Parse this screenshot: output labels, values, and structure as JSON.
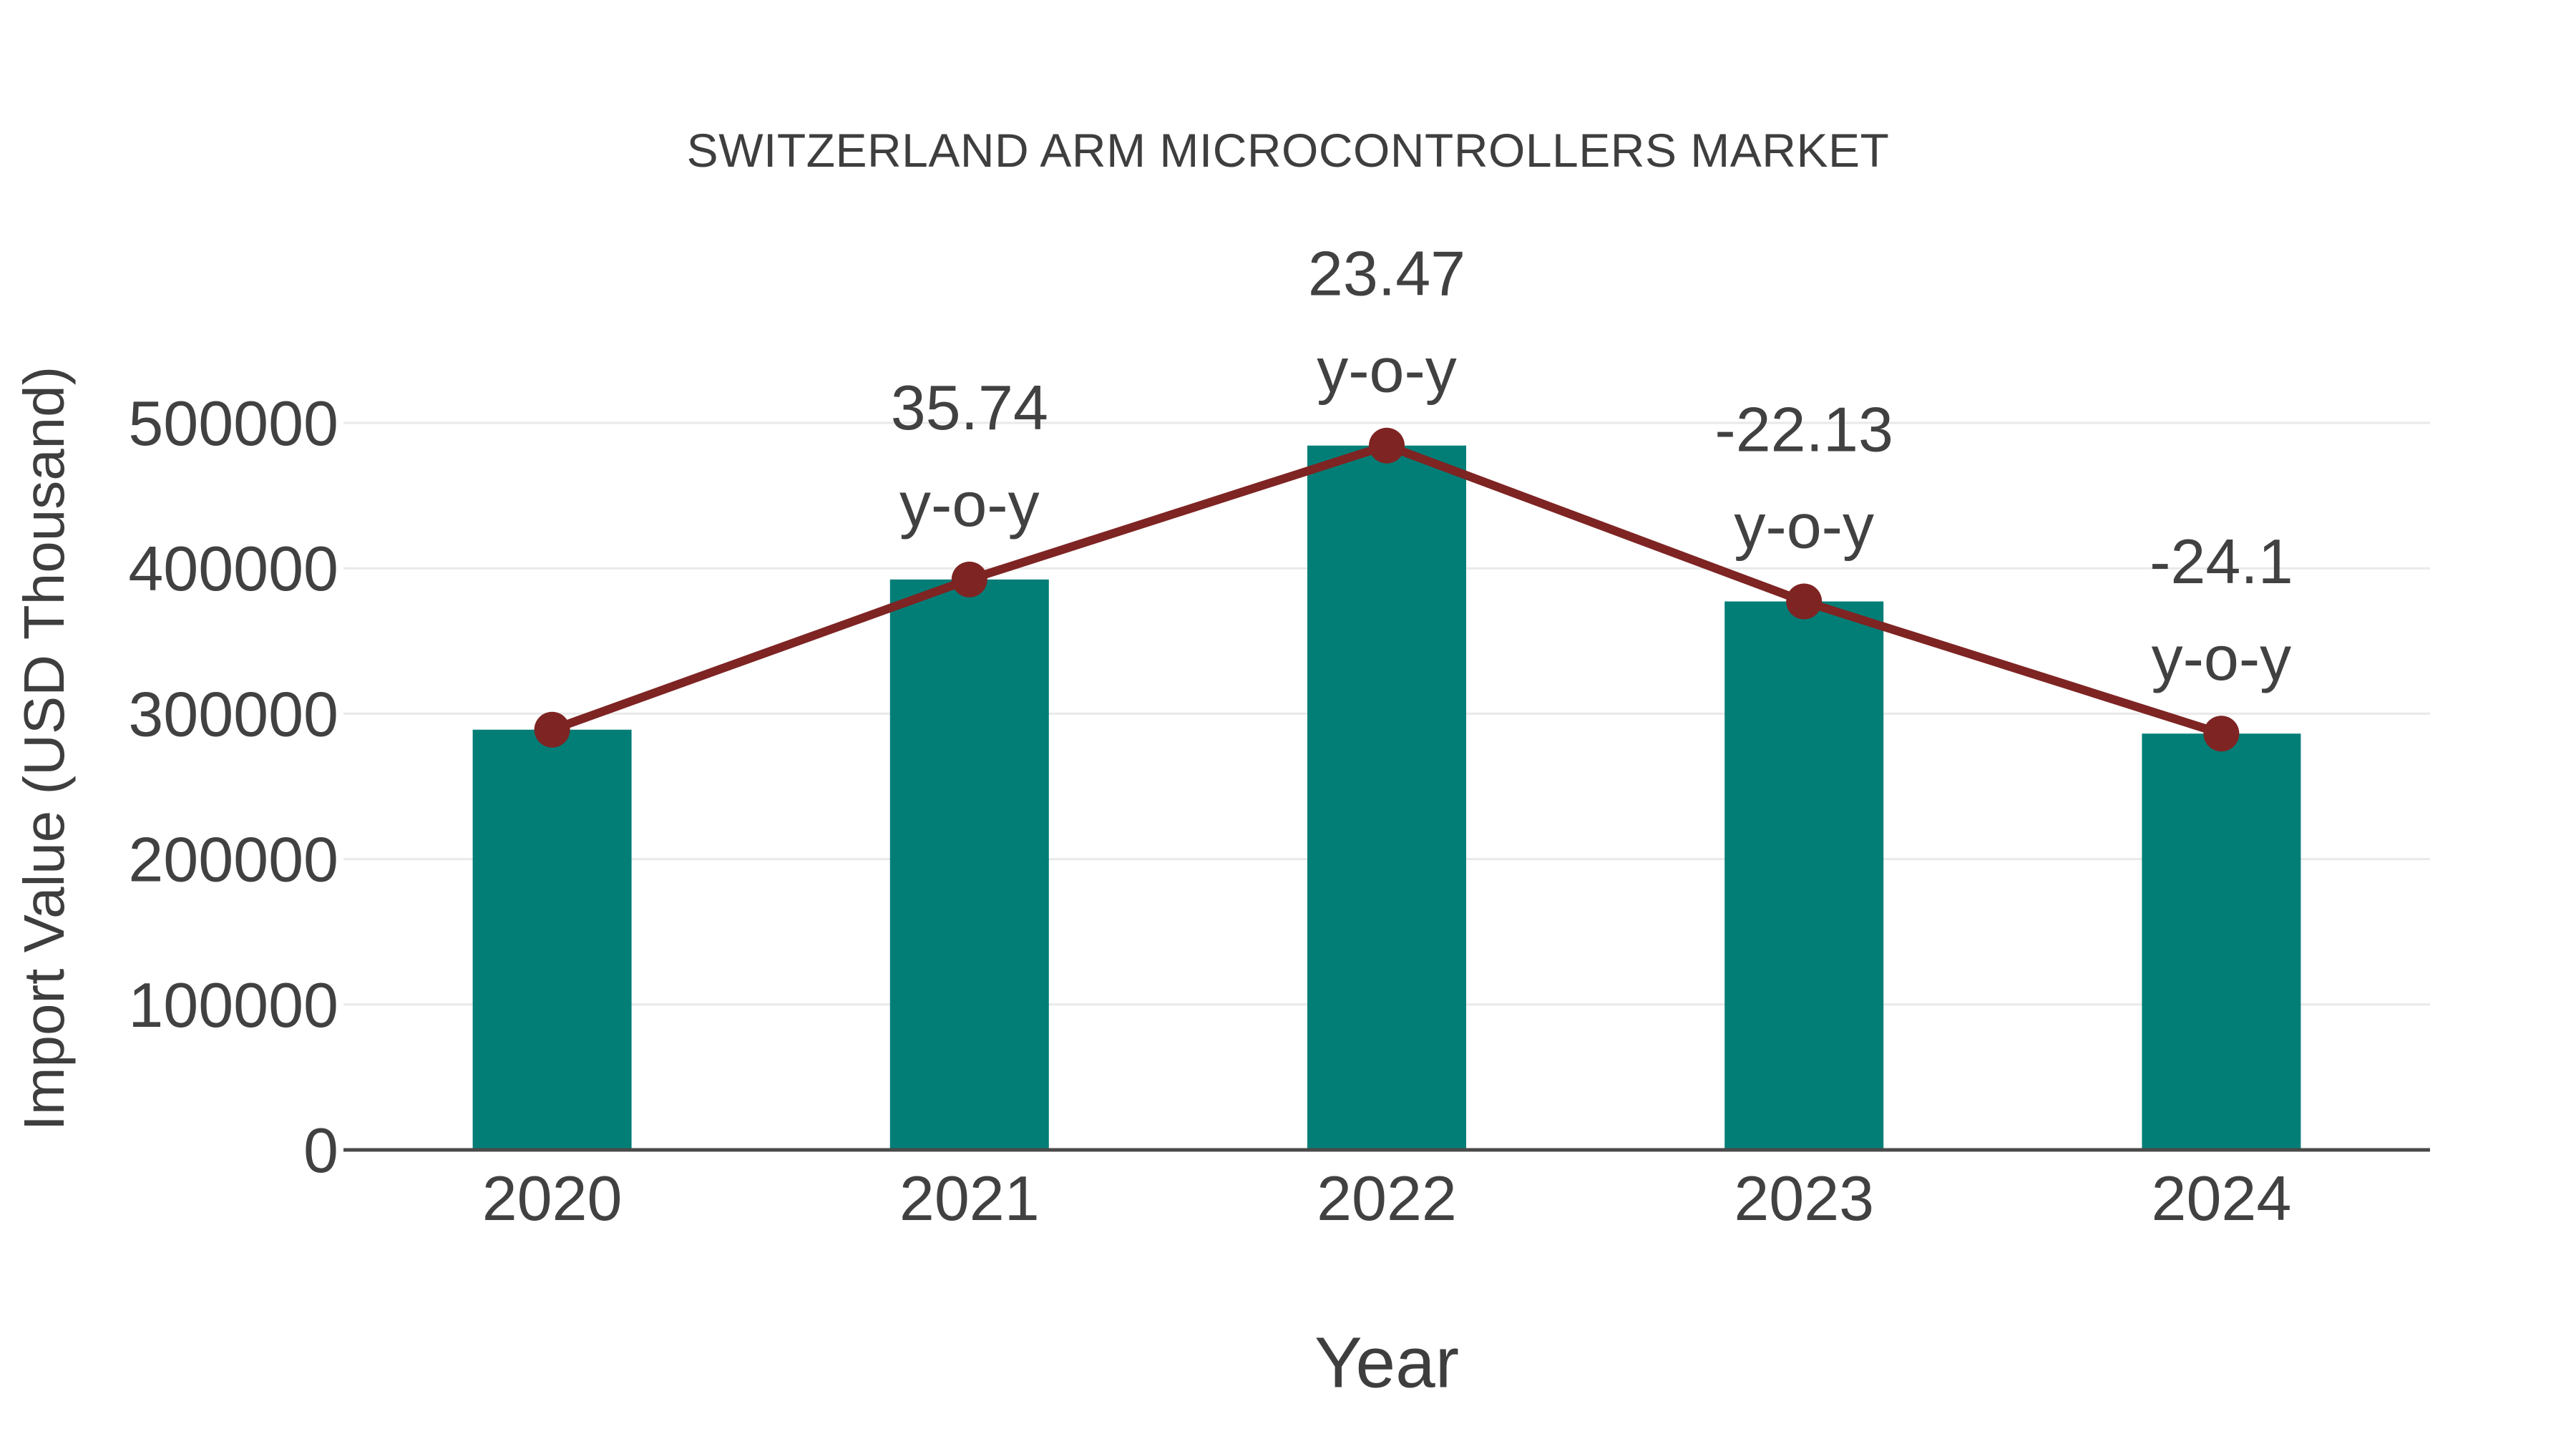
{
  "chart_data": {
    "type": "bar",
    "title": "SWITZERLAND ARM MICROCONTROLLERS MARKET",
    "xlabel": "Year",
    "ylabel": "Import Value (USD Thousand)",
    "categories": [
      "2020",
      "2021",
      "2022",
      "2023",
      "2024"
    ],
    "series": [
      {
        "name": "Import Value bars",
        "type": "bar",
        "color": "#027E77",
        "values": [
          289000,
          392300,
          484400,
          377200,
          286300
        ]
      },
      {
        "name": "y-o-y trend line",
        "type": "line",
        "color": "#7E2423",
        "values": [
          289000,
          392300,
          484400,
          377200,
          286300
        ],
        "point_labels": [
          null,
          "35.74",
          "23.47",
          "-22.13",
          "-24.1"
        ],
        "point_label_suffix": "y-o-y"
      }
    ],
    "ylim": [
      0,
      530000
    ],
    "ytick_values": [
      0,
      100000,
      200000,
      300000,
      400000,
      500000
    ],
    "ytick_labels": [
      "0",
      "100000",
      "200000",
      "300000",
      "400000",
      "500000"
    ],
    "grid": "horizontal",
    "legend": "none",
    "colors": {
      "bar": "#027E77",
      "line": "#7E2423",
      "marker": "#7E2423",
      "text": "#414141",
      "grid": "#E9E9E9",
      "axis": "#4A4A4A",
      "background": "#FFFFFF"
    }
  }
}
